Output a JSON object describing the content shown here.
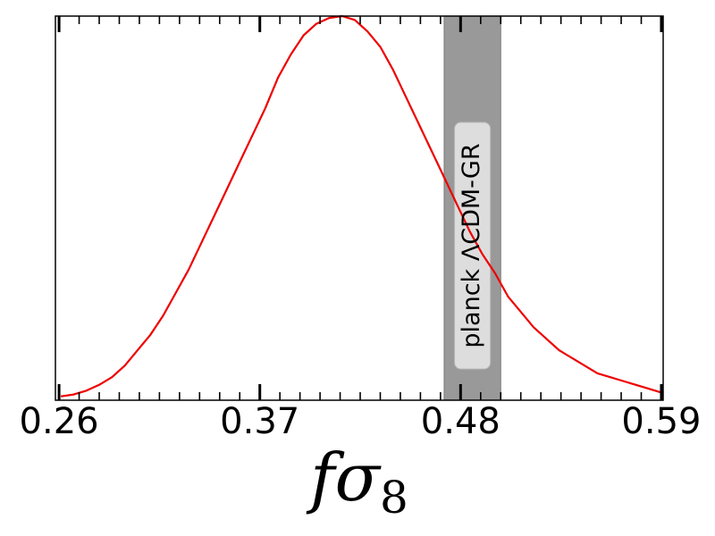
{
  "chart_data": {
    "type": "line",
    "xlabel_main": "fσ",
    "xlabel_sub": "8",
    "xlim": [
      0.258,
      0.591
    ],
    "ylim": [
      0,
      1.0
    ],
    "yticks_visible": false,
    "grid": false,
    "x_major_ticks": [
      0.26,
      0.37,
      0.48,
      0.59
    ],
    "x_tick_labels": [
      "0.26",
      "0.37",
      "0.48",
      "0.59"
    ],
    "x_minor_tick_step": 0.011,
    "series": [
      {
        "color": "#ee0000",
        "x": [
          0.261,
          0.268,
          0.275,
          0.282,
          0.289,
          0.296,
          0.303,
          0.31,
          0.317,
          0.324,
          0.331,
          0.338,
          0.345,
          0.352,
          0.359,
          0.366,
          0.373,
          0.38,
          0.387,
          0.394,
          0.401,
          0.408,
          0.415,
          0.422,
          0.429,
          0.436,
          0.443,
          0.45,
          0.457,
          0.464,
          0.471,
          0.478,
          0.485,
          0.492,
          0.499,
          0.506,
          0.513,
          0.52,
          0.527,
          0.534,
          0.541,
          0.548,
          0.555,
          0.562,
          0.569,
          0.576,
          0.583,
          0.59
        ],
        "y": [
          0.01,
          0.015,
          0.025,
          0.04,
          0.06,
          0.09,
          0.13,
          0.17,
          0.22,
          0.28,
          0.34,
          0.41,
          0.48,
          0.55,
          0.62,
          0.69,
          0.76,
          0.84,
          0.9,
          0.95,
          0.98,
          0.995,
          1.0,
          0.99,
          0.96,
          0.92,
          0.86,
          0.79,
          0.72,
          0.65,
          0.58,
          0.51,
          0.44,
          0.38,
          0.33,
          0.27,
          0.23,
          0.19,
          0.16,
          0.13,
          0.11,
          0.09,
          0.07,
          0.06,
          0.05,
          0.04,
          0.03,
          0.02
        ]
      }
    ],
    "band": {
      "label": "planck ΛCDM-GR",
      "x_range": [
        0.471,
        0.502
      ],
      "color": "#999999"
    }
  }
}
